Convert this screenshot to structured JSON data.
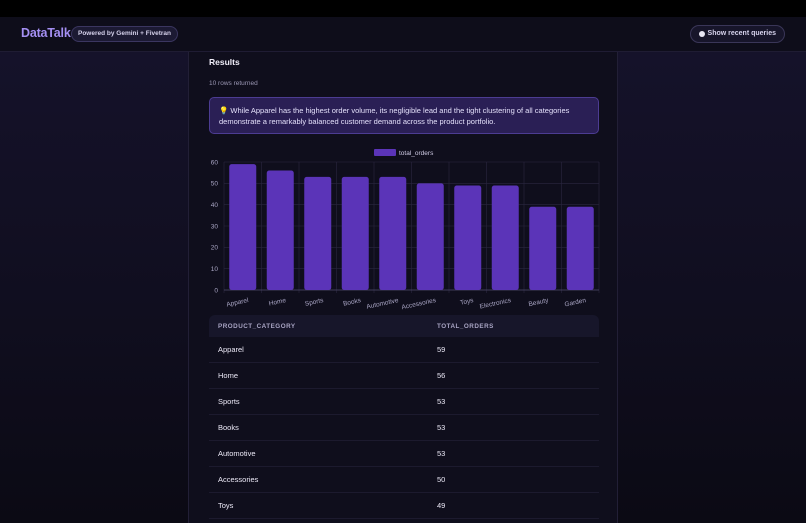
{
  "header": {
    "logo": "DataTalk",
    "badge": "Powered by Gemini + Fivetran",
    "recent_queries": "Show recent queries"
  },
  "results": {
    "title": "Results",
    "rows_returned": "10 rows returned",
    "insight": "💡 While Apparel has the highest order volume, its negligible lead and the tight clustering of all categories demonstrate a remarkably balanced customer demand across the product portfolio."
  },
  "chart_data": {
    "type": "bar",
    "categories": [
      "Apparel",
      "Home",
      "Sports",
      "Books",
      "Automotive",
      "Accessories",
      "Toys",
      "Electronics",
      "Beauty",
      "Garden"
    ],
    "series": [
      {
        "name": "total_orders",
        "values": [
          59,
          56,
          53,
          53,
          53,
          50,
          49,
          49,
          39,
          39
        ]
      }
    ],
    "ylim": [
      0,
      60
    ],
    "yticks": [
      0,
      10,
      20,
      30,
      40,
      50,
      60
    ],
    "legend": "top-center",
    "grid": true,
    "bar_color": "#5b34b8"
  },
  "table": {
    "columns": [
      "PRODUCT_CATEGORY",
      "TOTAL_ORDERS"
    ],
    "rows": [
      [
        "Apparel",
        "59"
      ],
      [
        "Home",
        "56"
      ],
      [
        "Sports",
        "53"
      ],
      [
        "Books",
        "53"
      ],
      [
        "Automotive",
        "53"
      ],
      [
        "Accessories",
        "50"
      ],
      [
        "Toys",
        "49"
      ]
    ]
  }
}
